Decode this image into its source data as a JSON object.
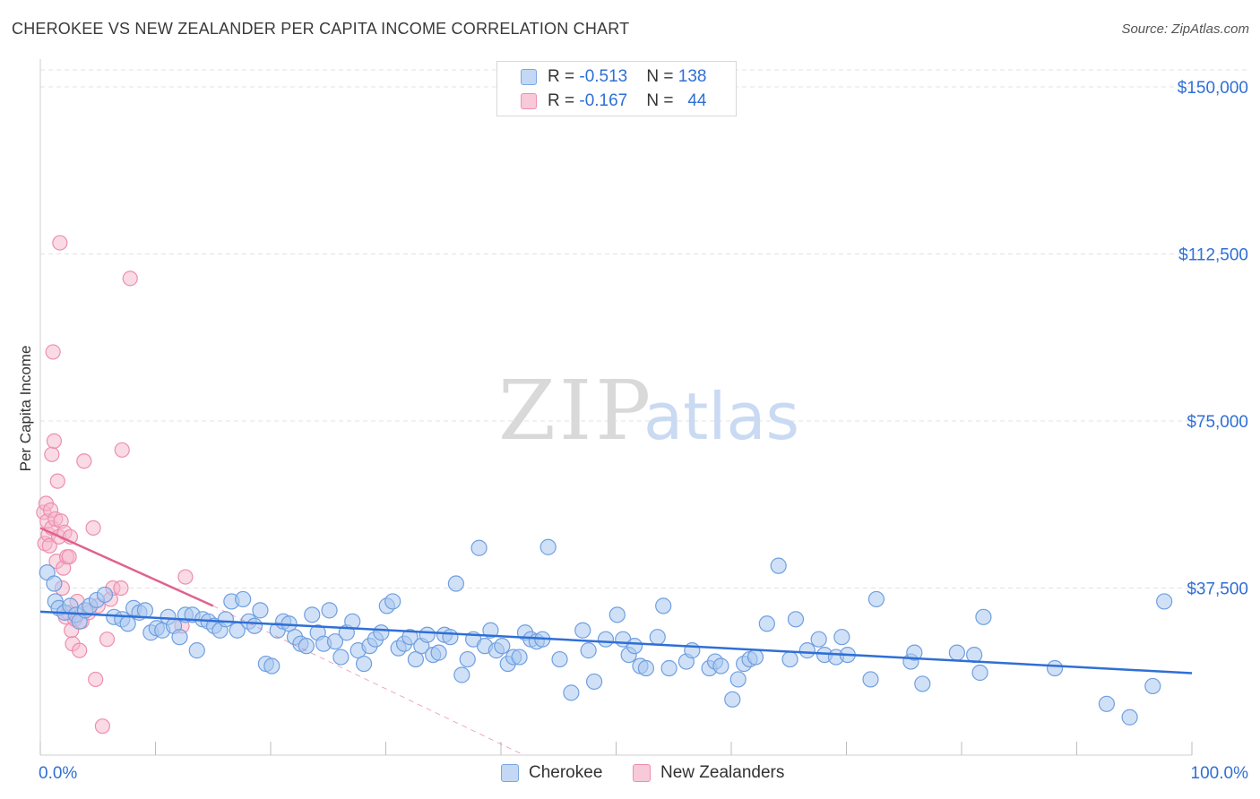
{
  "header": {
    "title": "CHEROKEE VS NEW ZEALANDER PER CAPITA INCOME CORRELATION CHART",
    "source": "Source: ZipAtlas.com"
  },
  "watermark": {
    "zip": "ZIP",
    "atlas": "atlas"
  },
  "legend": {
    "rows": [
      {
        "r_label": "R = ",
        "r_value": "-0.513",
        "n_label": "N = ",
        "n_value": "138"
      },
      {
        "r_label": "R = ",
        "r_value": "-0.167",
        "n_label": "N = ",
        "n_value": "44"
      }
    ]
  },
  "bottom_legend": {
    "series1": "Cherokee",
    "series2": "New Zealanders"
  },
  "colors": {
    "cherokee_fill": "#a9c8f0",
    "cherokee_stroke": "#6f9fe0",
    "cherokee_line": "#2f6fd6",
    "nz_fill": "#f6b6cb",
    "nz_stroke": "#ec8fae",
    "nz_line": "#e0628f",
    "axis_label": "#2f6fd6",
    "grid": "#e3e3e3"
  },
  "chart_data": {
    "type": "scatter",
    "title": "CHEROKEE VS NEW ZEALANDER PER CAPITA INCOME CORRELATION CHART",
    "xlabel": "",
    "ylabel": "Per Capita Income",
    "xlim": [
      0,
      100
    ],
    "ylim": [
      0,
      150000
    ],
    "x_tick_labels": [
      "0.0%",
      "100.0%"
    ],
    "y_ticks": [
      37500,
      75000,
      112500,
      150000
    ],
    "y_tick_labels": [
      "$37,500",
      "$75,000",
      "$112,500",
      "$150,000"
    ],
    "grid": true,
    "legend_position": "top-center",
    "series": [
      {
        "name": "Cherokee",
        "trend": {
          "x": [
            0,
            100
          ],
          "y": [
            32200,
            18400
          ],
          "style": "solid"
        },
        "points": [
          {
            "x": 0.6,
            "y": 41000
          },
          {
            "x": 1.2,
            "y": 38500
          },
          {
            "x": 1.3,
            "y": 34500
          },
          {
            "x": 1.6,
            "y": 33000
          },
          {
            "x": 2.1,
            "y": 32000
          },
          {
            "x": 2.6,
            "y": 33500
          },
          {
            "x": 3.1,
            "y": 31500
          },
          {
            "x": 3.4,
            "y": 30000
          },
          {
            "x": 3.9,
            "y": 32500
          },
          {
            "x": 4.3,
            "y": 33500
          },
          {
            "x": 4.9,
            "y": 34800
          },
          {
            "x": 5.6,
            "y": 36000
          },
          {
            "x": 6.4,
            "y": 31000
          },
          {
            "x": 7.1,
            "y": 30500
          },
          {
            "x": 7.6,
            "y": 29500
          },
          {
            "x": 8.1,
            "y": 33000
          },
          {
            "x": 8.6,
            "y": 32000
          },
          {
            "x": 9.1,
            "y": 32500
          },
          {
            "x": 9.6,
            "y": 27500
          },
          {
            "x": 10.1,
            "y": 28500
          },
          {
            "x": 10.6,
            "y": 28000
          },
          {
            "x": 11.1,
            "y": 31000
          },
          {
            "x": 11.6,
            "y": 29000
          },
          {
            "x": 12.1,
            "y": 26500
          },
          {
            "x": 12.6,
            "y": 31500
          },
          {
            "x": 13.2,
            "y": 31500
          },
          {
            "x": 13.6,
            "y": 23500
          },
          {
            "x": 14.1,
            "y": 30500
          },
          {
            "x": 14.6,
            "y": 30000
          },
          {
            "x": 15.1,
            "y": 29000
          },
          {
            "x": 15.6,
            "y": 28000
          },
          {
            "x": 16.1,
            "y": 30500
          },
          {
            "x": 16.6,
            "y": 34500
          },
          {
            "x": 17.1,
            "y": 28000
          },
          {
            "x": 17.6,
            "y": 35000
          },
          {
            "x": 18.1,
            "y": 30000
          },
          {
            "x": 18.6,
            "y": 29000
          },
          {
            "x": 19.1,
            "y": 32500
          },
          {
            "x": 19.6,
            "y": 20500
          },
          {
            "x": 20.1,
            "y": 20000
          },
          {
            "x": 20.6,
            "y": 28000
          },
          {
            "x": 21.1,
            "y": 30000
          },
          {
            "x": 21.6,
            "y": 29500
          },
          {
            "x": 22.1,
            "y": 26500
          },
          {
            "x": 22.6,
            "y": 25000
          },
          {
            "x": 23.1,
            "y": 24500
          },
          {
            "x": 23.6,
            "y": 31500
          },
          {
            "x": 24.1,
            "y": 27500
          },
          {
            "x": 24.6,
            "y": 25000
          },
          {
            "x": 25.1,
            "y": 32500
          },
          {
            "x": 25.6,
            "y": 25500
          },
          {
            "x": 26.1,
            "y": 22000
          },
          {
            "x": 26.6,
            "y": 27500
          },
          {
            "x": 27.1,
            "y": 30000
          },
          {
            "x": 27.6,
            "y": 23500
          },
          {
            "x": 28.1,
            "y": 20500
          },
          {
            "x": 28.6,
            "y": 24500
          },
          {
            "x": 29.1,
            "y": 26000
          },
          {
            "x": 29.6,
            "y": 27500
          },
          {
            "x": 30.1,
            "y": 33500
          },
          {
            "x": 30.6,
            "y": 34500
          },
          {
            "x": 31.1,
            "y": 24000
          },
          {
            "x": 31.6,
            "y": 25000
          },
          {
            "x": 32.1,
            "y": 26500
          },
          {
            "x": 32.6,
            "y": 21500
          },
          {
            "x": 33.1,
            "y": 24500
          },
          {
            "x": 33.6,
            "y": 27000
          },
          {
            "x": 34.1,
            "y": 22500
          },
          {
            "x": 34.6,
            "y": 23000
          },
          {
            "x": 35.1,
            "y": 27000
          },
          {
            "x": 35.6,
            "y": 26500
          },
          {
            "x": 36.1,
            "y": 38500
          },
          {
            "x": 36.6,
            "y": 18000
          },
          {
            "x": 37.1,
            "y": 21500
          },
          {
            "x": 37.6,
            "y": 26000
          },
          {
            "x": 38.1,
            "y": 46500
          },
          {
            "x": 38.6,
            "y": 24500
          },
          {
            "x": 39.1,
            "y": 28000
          },
          {
            "x": 39.6,
            "y": 23500
          },
          {
            "x": 40.1,
            "y": 24500
          },
          {
            "x": 40.6,
            "y": 20500
          },
          {
            "x": 41.1,
            "y": 22000
          },
          {
            "x": 41.6,
            "y": 22000
          },
          {
            "x": 42.1,
            "y": 27500
          },
          {
            "x": 42.6,
            "y": 26000
          },
          {
            "x": 43.1,
            "y": 25500
          },
          {
            "x": 43.6,
            "y": 26000
          },
          {
            "x": 44.1,
            "y": 46700
          },
          {
            "x": 45.1,
            "y": 21500
          },
          {
            "x": 46.1,
            "y": 14000
          },
          {
            "x": 47.1,
            "y": 28000
          },
          {
            "x": 47.6,
            "y": 23500
          },
          {
            "x": 48.1,
            "y": 16500
          },
          {
            "x": 49.1,
            "y": 26000
          },
          {
            "x": 50.1,
            "y": 31500
          },
          {
            "x": 50.6,
            "y": 26000
          },
          {
            "x": 51.1,
            "y": 22500
          },
          {
            "x": 51.6,
            "y": 24500
          },
          {
            "x": 52.1,
            "y": 20000
          },
          {
            "x": 52.6,
            "y": 19500
          },
          {
            "x": 53.6,
            "y": 26500
          },
          {
            "x": 54.1,
            "y": 33500
          },
          {
            "x": 54.6,
            "y": 19500
          },
          {
            "x": 56.1,
            "y": 21000
          },
          {
            "x": 56.6,
            "y": 23500
          },
          {
            "x": 58.1,
            "y": 19500
          },
          {
            "x": 58.6,
            "y": 21000
          },
          {
            "x": 59.1,
            "y": 20000
          },
          {
            "x": 60.1,
            "y": 12500
          },
          {
            "x": 60.6,
            "y": 17000
          },
          {
            "x": 61.1,
            "y": 20500
          },
          {
            "x": 61.6,
            "y": 21500
          },
          {
            "x": 62.1,
            "y": 22000
          },
          {
            "x": 63.1,
            "y": 29500
          },
          {
            "x": 64.1,
            "y": 42500
          },
          {
            "x": 65.1,
            "y": 21500
          },
          {
            "x": 65.6,
            "y": 30500
          },
          {
            "x": 66.6,
            "y": 23500
          },
          {
            "x": 67.6,
            "y": 26000
          },
          {
            "x": 68.1,
            "y": 22500
          },
          {
            "x": 69.1,
            "y": 22000
          },
          {
            "x": 69.6,
            "y": 26500
          },
          {
            "x": 70.1,
            "y": 22500
          },
          {
            "x": 72.1,
            "y": 17000
          },
          {
            "x": 72.6,
            "y": 35000
          },
          {
            "x": 75.6,
            "y": 21000
          },
          {
            "x": 75.9,
            "y": 23000
          },
          {
            "x": 76.6,
            "y": 16000
          },
          {
            "x": 79.6,
            "y": 23000
          },
          {
            "x": 81.1,
            "y": 22500
          },
          {
            "x": 81.6,
            "y": 18500
          },
          {
            "x": 81.9,
            "y": 31000
          },
          {
            "x": 88.1,
            "y": 19500
          },
          {
            "x": 92.6,
            "y": 11500
          },
          {
            "x": 94.6,
            "y": 8500
          },
          {
            "x": 96.6,
            "y": 15500
          },
          {
            "x": 97.6,
            "y": 34500
          }
        ]
      },
      {
        "name": "New Zealanders",
        "trend": {
          "x": [
            0,
            15
          ],
          "y": [
            51000,
            33500
          ],
          "style": "solid",
          "extension_x": [
            15,
            42
          ],
          "extension_y": [
            33500,
            0
          ],
          "extension_style": "dashed"
        },
        "points": [
          {
            "x": 0.3,
            "y": 54500
          },
          {
            "x": 0.4,
            "y": 47500
          },
          {
            "x": 0.5,
            "y": 56500
          },
          {
            "x": 0.6,
            "y": 52500
          },
          {
            "x": 0.7,
            "y": 49500
          },
          {
            "x": 0.8,
            "y": 47000
          },
          {
            "x": 0.9,
            "y": 55000
          },
          {
            "x": 1.0,
            "y": 51000
          },
          {
            "x": 1.0,
            "y": 67500
          },
          {
            "x": 1.1,
            "y": 90500
          },
          {
            "x": 1.2,
            "y": 70500
          },
          {
            "x": 1.3,
            "y": 53000
          },
          {
            "x": 1.4,
            "y": 43500
          },
          {
            "x": 1.5,
            "y": 61500
          },
          {
            "x": 1.6,
            "y": 49000
          },
          {
            "x": 1.7,
            "y": 115000
          },
          {
            "x": 1.8,
            "y": 52500
          },
          {
            "x": 1.9,
            "y": 37500
          },
          {
            "x": 2.0,
            "y": 42000
          },
          {
            "x": 2.1,
            "y": 50000
          },
          {
            "x": 2.2,
            "y": 31000
          },
          {
            "x": 2.3,
            "y": 44500
          },
          {
            "x": 2.4,
            "y": 32000
          },
          {
            "x": 2.5,
            "y": 44500
          },
          {
            "x": 2.6,
            "y": 49000
          },
          {
            "x": 2.7,
            "y": 28000
          },
          {
            "x": 2.8,
            "y": 25000
          },
          {
            "x": 3.0,
            "y": 30500
          },
          {
            "x": 3.2,
            "y": 34500
          },
          {
            "x": 3.4,
            "y": 23500
          },
          {
            "x": 3.6,
            "y": 30000
          },
          {
            "x": 3.8,
            "y": 66000
          },
          {
            "x": 4.2,
            "y": 32000
          },
          {
            "x": 4.6,
            "y": 51000
          },
          {
            "x": 4.8,
            "y": 17000
          },
          {
            "x": 5.0,
            "y": 33500
          },
          {
            "x": 5.4,
            "y": 6500
          },
          {
            "x": 5.8,
            "y": 26000
          },
          {
            "x": 6.1,
            "y": 35000
          },
          {
            "x": 6.3,
            "y": 37500
          },
          {
            "x": 7.0,
            "y": 37500
          },
          {
            "x": 7.1,
            "y": 68500
          },
          {
            "x": 7.8,
            "y": 107000
          },
          {
            "x": 12.6,
            "y": 40000
          },
          {
            "x": 12.3,
            "y": 29000
          }
        ]
      }
    ]
  }
}
